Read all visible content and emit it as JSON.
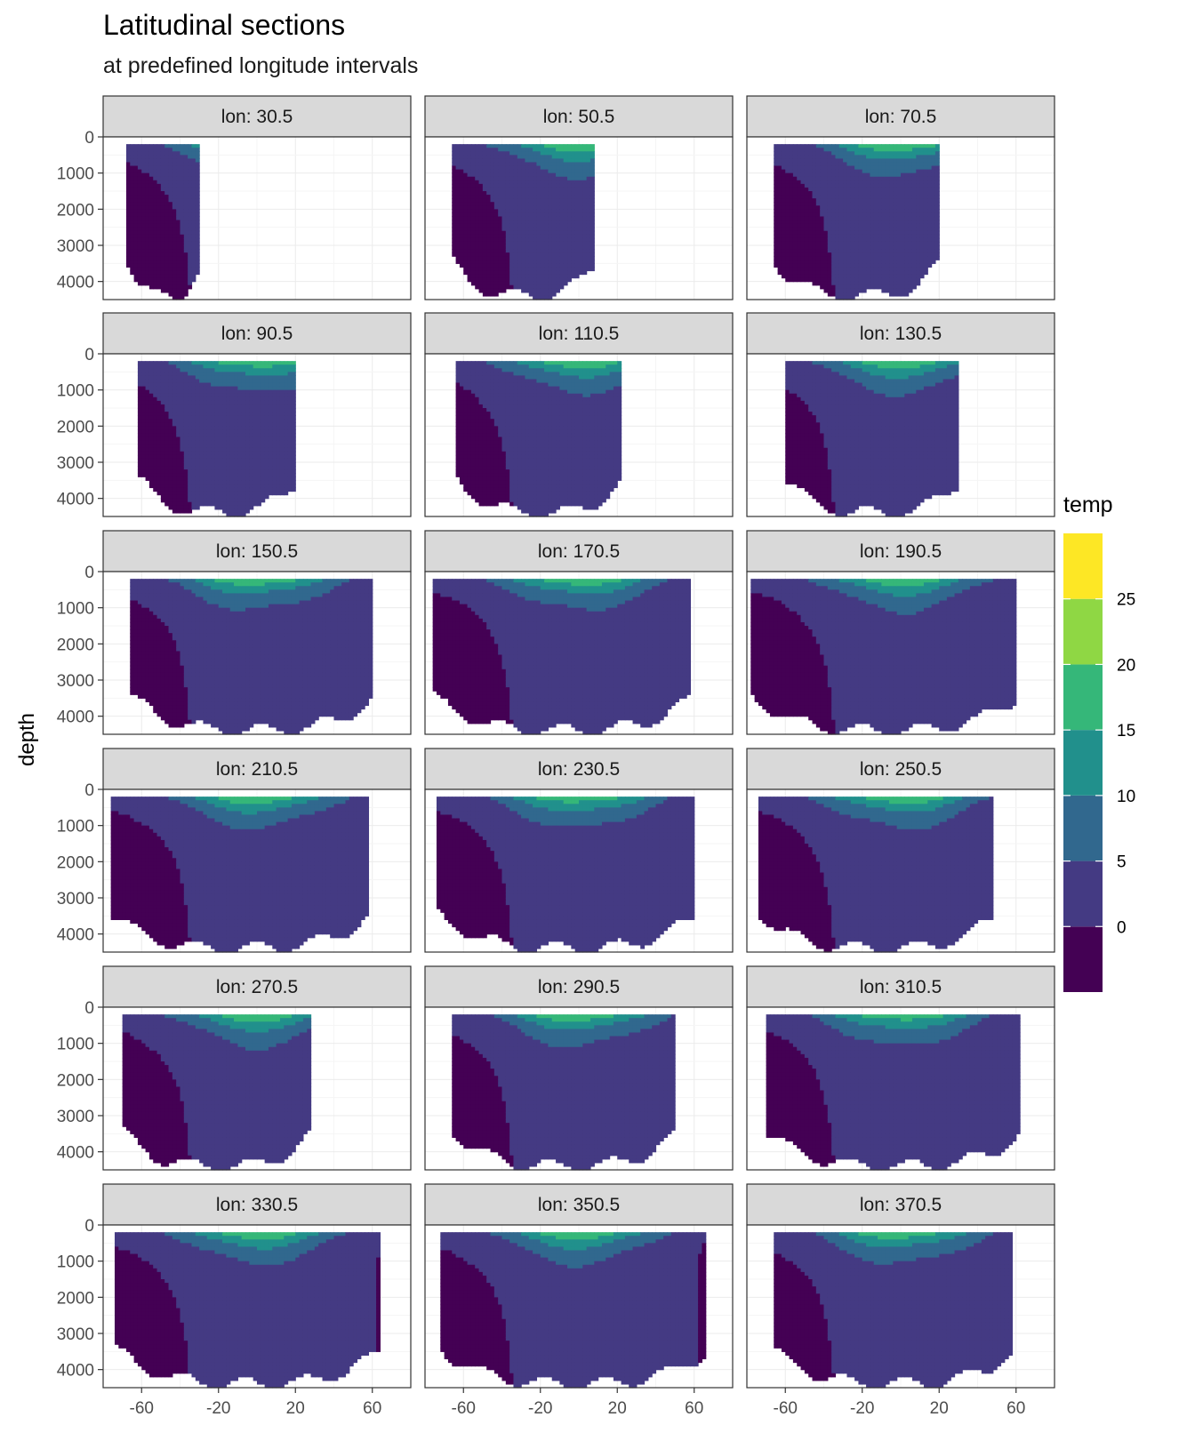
{
  "title": "Latitudinal sections",
  "subtitle": "at predefined longitude intervals",
  "chart_data": {
    "type": "heatmap",
    "title": "Latitudinal sections",
    "subtitle": "at predefined longitude intervals",
    "xlabel": "",
    "ylabel": "depth",
    "xlim": [
      -80,
      80
    ],
    "ylim": [
      4500,
      0
    ],
    "x_ticks": [
      -60,
      -20,
      20,
      60
    ],
    "x_tick_labels": [
      "-60",
      "-20",
      "20",
      "60"
    ],
    "y_ticks": [
      0,
      1000,
      2000,
      3000,
      4000
    ],
    "y_tick_labels": [
      "0",
      "1000",
      "2000",
      "3000",
      "4000"
    ],
    "grid": true,
    "legend": {
      "title": "temp",
      "position": "right",
      "labels": [
        "0",
        "5",
        "10",
        "15",
        "20",
        "25"
      ],
      "breaks": [
        -5,
        0,
        5,
        10,
        15,
        20,
        25,
        30
      ],
      "colors": [
        "#440154",
        "#443A83",
        "#31688E",
        "#21908C",
        "#35B779",
        "#8FD744",
        "#FDE725"
      ]
    },
    "facet_strip_colors": {
      "fill": "#D9D9D9",
      "border": "#333333"
    },
    "facets": [
      {
        "label": "lon: 30.5",
        "lat_min": -68,
        "lat_max": -30,
        "bottom_depth": 4300
      },
      {
        "label": "lon: 50.5",
        "lat_min": -66,
        "lat_max": 8,
        "bottom_depth": 4500
      },
      {
        "label": "lon: 70.5",
        "lat_min": -66,
        "lat_max": 20,
        "bottom_depth": 4500
      },
      {
        "label": "lon: 90.5",
        "lat_min": -62,
        "lat_max": 20,
        "bottom_depth": 4500
      },
      {
        "label": "lon: 110.5",
        "lat_min": -64,
        "lat_max": 22,
        "bottom_depth": 4500
      },
      {
        "label": "lon: 130.5",
        "lat_min": -60,
        "lat_max": 30,
        "bottom_depth": 4500
      },
      {
        "label": "lon: 150.5",
        "lat_min": -66,
        "lat_max": 60,
        "bottom_depth": 4500
      },
      {
        "label": "lon: 170.5",
        "lat_min": -76,
        "lat_max": 58,
        "bottom_depth": 4500
      },
      {
        "label": "lon: 190.5",
        "lat_min": -78,
        "lat_max": 60,
        "bottom_depth": 4500
      },
      {
        "label": "lon: 210.5",
        "lat_min": -76,
        "lat_max": 58,
        "bottom_depth": 4500
      },
      {
        "label": "lon: 230.5",
        "lat_min": -74,
        "lat_max": 60,
        "bottom_depth": 4500
      },
      {
        "label": "lon: 250.5",
        "lat_min": -74,
        "lat_max": 48,
        "bottom_depth": 4500
      },
      {
        "label": "lon: 270.5",
        "lat_min": -70,
        "lat_max": 28,
        "bottom_depth": 4500
      },
      {
        "label": "lon: 290.5",
        "lat_min": -66,
        "lat_max": 50,
        "bottom_depth": 4500
      },
      {
        "label": "lon: 310.5",
        "lat_min": -70,
        "lat_max": 62,
        "bottom_depth": 4500
      },
      {
        "label": "lon: 330.5",
        "lat_min": -74,
        "lat_max": 64,
        "bottom_depth": 4500
      },
      {
        "label": "lon: 350.5",
        "lat_min": -72,
        "lat_max": 66,
        "bottom_depth": 4500
      },
      {
        "label": "lon: 370.5",
        "lat_min": -66,
        "lat_max": 58,
        "bottom_depth": 4500
      }
    ]
  }
}
